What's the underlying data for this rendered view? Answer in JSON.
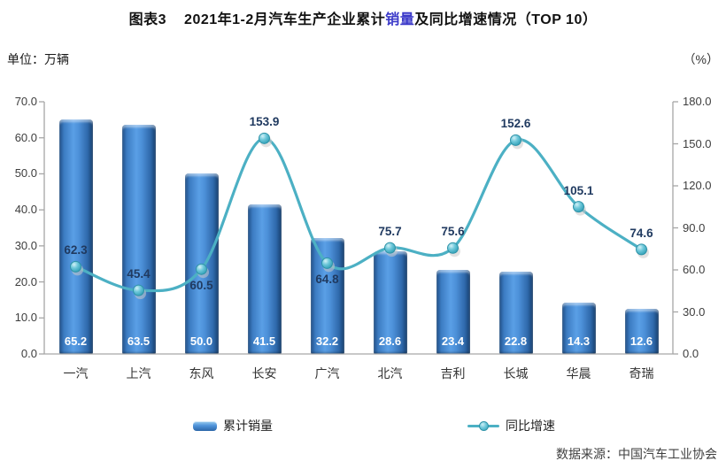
{
  "header": {
    "tag": "图表3",
    "title_pre": "2021年1-2月汽车生产企业累计",
    "title_highlight": "销量",
    "title_post": "及同比增速情况（TOP 10）",
    "unit_left": "单位：万辆",
    "unit_right": "（%）"
  },
  "chart_data": {
    "type": "bar",
    "subtype": "bar+line combo, dual axis",
    "title": "2021年1-2月汽车生产企业累计销量及同比增速情况（TOP 10）",
    "categories": [
      "一汽",
      "上汽",
      "东风",
      "长安",
      "广汽",
      "北汽",
      "吉利",
      "长城",
      "华晨",
      "奇瑞"
    ],
    "series": [
      {
        "name": "累计销量",
        "type": "bar",
        "axis": "left",
        "unit": "万辆",
        "values": [
          65.2,
          63.5,
          50.0,
          41.5,
          32.2,
          28.6,
          23.4,
          22.8,
          14.3,
          12.6
        ],
        "color": "#3e7ec9"
      },
      {
        "name": "同比增速",
        "type": "line",
        "axis": "right",
        "unit": "%",
        "values": [
          62.3,
          45.4,
          60.5,
          153.9,
          64.8,
          75.7,
          75.6,
          152.6,
          105.1,
          74.6
        ],
        "label_side": [
          "above",
          "above",
          "below",
          "above",
          "below",
          "above",
          "above",
          "above",
          "above",
          "above"
        ],
        "color": "#4cb0c4"
      }
    ],
    "left_axis": {
      "min": 0,
      "max": 70,
      "step": 10,
      "tick_labels": [
        "70.0",
        "60.0",
        "50.0",
        "40.0",
        "30.0",
        "20.0",
        "10.0",
        "0.0"
      ]
    },
    "right_axis": {
      "min": 0,
      "max": 180,
      "step": 30,
      "tick_labels": [
        "180.0",
        "150.0",
        "120.0",
        "90.0",
        "60.0",
        "30.0",
        "0.0"
      ]
    },
    "grid": false,
    "legend_position": "bottom"
  },
  "footer": {
    "source": "数据来源：中国汽车工业协会"
  },
  "colors": {
    "title_highlight": "#3b39c9",
    "bar": "#3e7ec9",
    "line": "#4cb0c4",
    "axis": "#a6a6a6",
    "bar_value_text": "#ffffff",
    "line_value_text": "#203a60"
  }
}
